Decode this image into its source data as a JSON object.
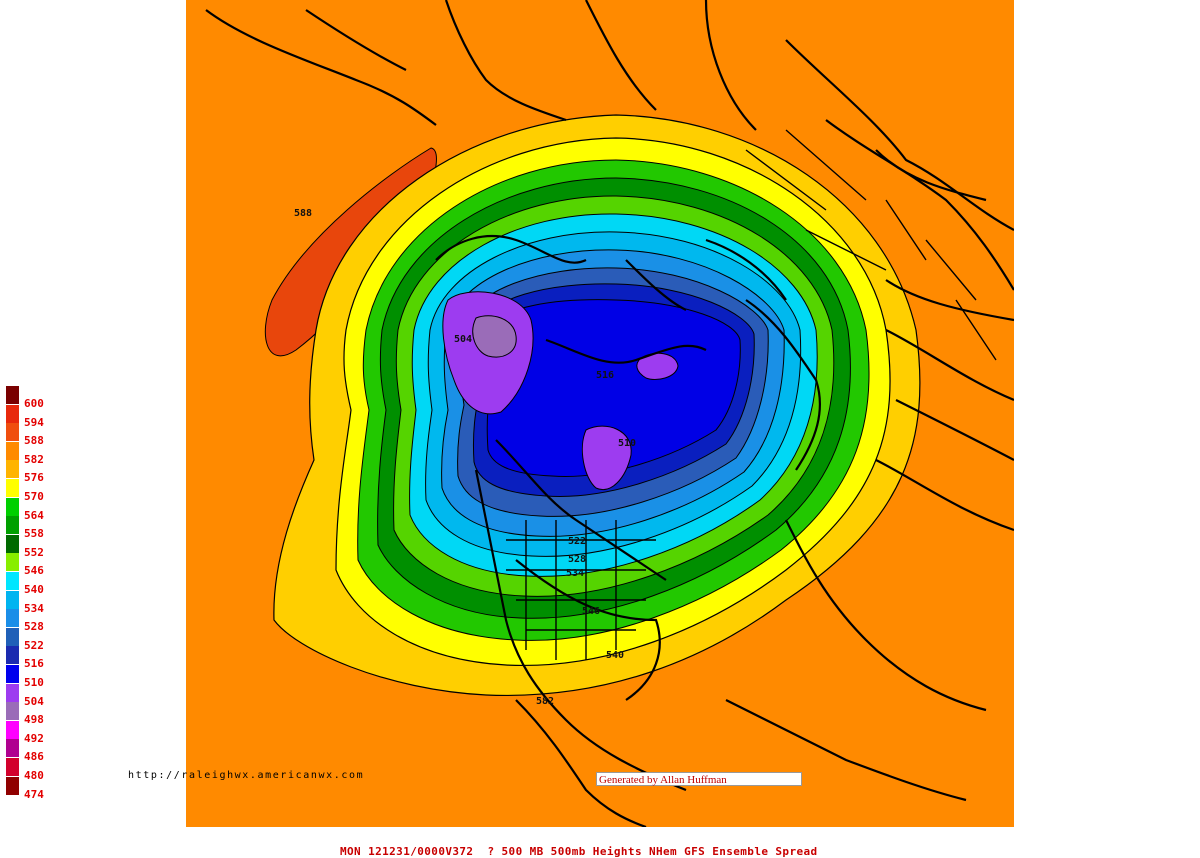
{
  "colors": {
    "background": "#ff8a00",
    "border_line": "#000000"
  },
  "legend": [
    {
      "label": "600",
      "color": "#7a0000"
    },
    {
      "label": "594",
      "color": "#e8290c"
    },
    {
      "label": "588",
      "color": "#f04e0e"
    },
    {
      "label": "582",
      "color": "#ff8a00"
    },
    {
      "label": "576",
      "color": "#ffb400"
    },
    {
      "label": "570",
      "color": "#ffff00"
    },
    {
      "label": "564",
      "color": "#00d000"
    },
    {
      "label": "558",
      "color": "#00a000"
    },
    {
      "label": "552",
      "color": "#006a00"
    },
    {
      "label": "546",
      "color": "#88ee00"
    },
    {
      "label": "540",
      "color": "#00e6ff"
    },
    {
      "label": "534",
      "color": "#00b4f0"
    },
    {
      "label": "528",
      "color": "#1a8ee8"
    },
    {
      "label": "522",
      "color": "#2060b8"
    },
    {
      "label": "516",
      "color": "#1b2bb0"
    },
    {
      "label": "510",
      "color": "#0000ee"
    },
    {
      "label": "504",
      "color": "#9d3cf0"
    },
    {
      "label": "498",
      "color": "#9a6cb8"
    },
    {
      "label": "492",
      "color": "#ff00ff"
    },
    {
      "label": "486",
      "color": "#b00090"
    },
    {
      "label": "480",
      "color": "#d2002c"
    },
    {
      "label": "474",
      "color": "#900000"
    }
  ],
  "contour_labels": [
    {
      "text": "588"
    },
    {
      "text": "504"
    },
    {
      "text": "516"
    },
    {
      "text": "510"
    },
    {
      "text": "522"
    },
    {
      "text": "528"
    },
    {
      "text": "534"
    },
    {
      "text": "540"
    },
    {
      "text": "546"
    },
    {
      "text": "582"
    }
  ],
  "site_url": "http://raleighwx.americanwx.com",
  "credit": "Generated by Allan Huffman",
  "footer_title": "MON 121231/0000V372  ? 500 MB 500mb Heights NHem GFS Ensemble Spread"
}
